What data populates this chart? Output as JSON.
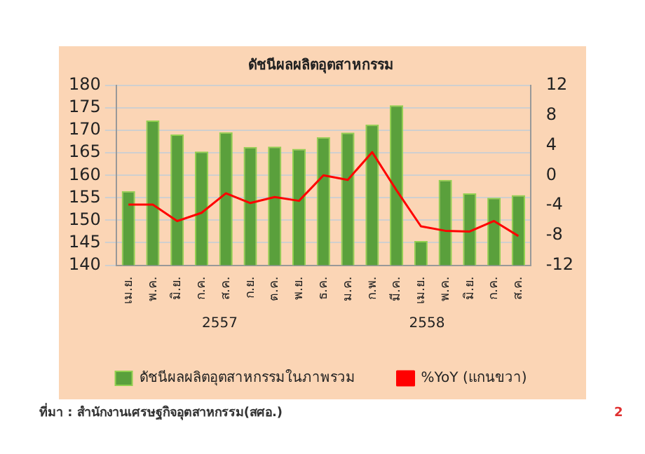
{
  "chart_data": {
    "type": "bar",
    "title": "ดัชนีผลผลิตอุตสาหกรรม",
    "categories": [
      "เม.ย.",
      "พ.ค.",
      "มิ.ย.",
      "ก.ค.",
      "ส.ค.",
      "ก.ย.",
      "ต.ค.",
      "พ.ย.",
      "ธ.ค.",
      "ม.ค.",
      "ก.พ.",
      "มี.ค.",
      "เม.ย.",
      "พ.ค.",
      "มิ.ย.",
      "ก.ค.",
      "ส.ค."
    ],
    "series": [
      {
        "name": "ดัชนีผลผลิตอุตสาหกรรมในภาพรวม",
        "color": "#5aa03c",
        "values": [
          156.5,
          172.2,
          169.1,
          165.3,
          169.6,
          166.3,
          166.4,
          165.9,
          168.5,
          169.5,
          171.3,
          175.6,
          145.4,
          159.0,
          156.0,
          155.0,
          155.6
        ]
      },
      {
        "name": "%YoY (แกนขวา)",
        "type": "line",
        "axis": "y2",
        "color": "#ff0000",
        "values": [
          -3.9,
          -3.9,
          -6.1,
          -5.0,
          -2.4,
          -3.7,
          -2.9,
          -3.4,
          0.0,
          -0.6,
          3.1,
          -2.0,
          -6.8,
          -7.4,
          -7.5,
          -6.1,
          -8.1
        ]
      }
    ],
    "ylim": [
      140,
      180
    ],
    "yticks": [
      140,
      145,
      150,
      155,
      160,
      165,
      170,
      175,
      180
    ],
    "y2lim": [
      -12,
      12
    ],
    "y2ticks": [
      -12,
      -8,
      -4,
      0,
      4,
      8,
      12
    ],
    "grid": "y",
    "legend": "bottom",
    "marker": "none",
    "line_style": "solid",
    "annotations": [
      "2557",
      "2558",
      "ที่มา : สำนักงานเศรษฐกิจอุตสาหกรรม(สศอ.)",
      "2"
    ]
  }
}
